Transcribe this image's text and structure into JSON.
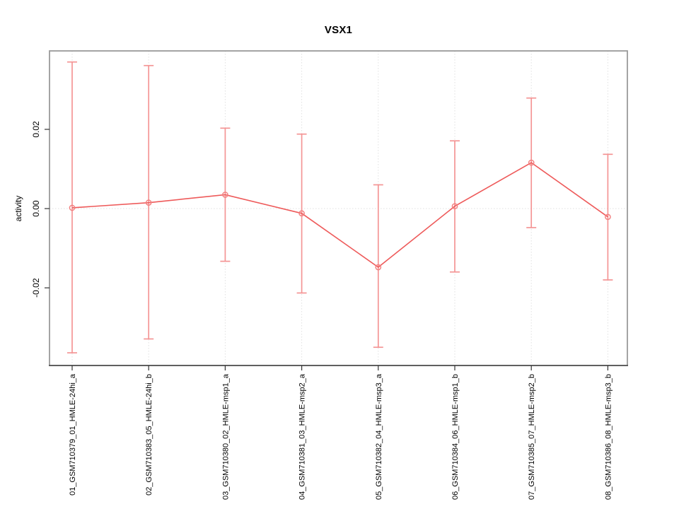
{
  "chart_data": {
    "type": "line",
    "title": "VSX1",
    "xlabel": "",
    "ylabel": "activity",
    "legend": "none",
    "grid": {
      "vertical_per_category": true,
      "horizontal_at": 0,
      "style": "dotted"
    },
    "ylim": [
      -0.0396,
      0.0398
    ],
    "yticks": {
      "values": [
        -0.02,
        0,
        0.02
      ],
      "labels": [
        "-0.02",
        "0.00",
        "0.02"
      ]
    },
    "categories": [
      "01_GSM710379_01_HMLE-24hi_a",
      "02_GSM710383_05_HMLE-24hi_b",
      "03_GSM710380_02_HMLE-msp1_a",
      "04_GSM710381_03_HMLE-msp2_a",
      "05_GSM710382_04_HMLE-msp3_a",
      "06_GSM710384_06_HMLE-msp1_b",
      "07_GSM710385_07_HMLE-msp2_b",
      "08_GSM710386_08_HMLE-msp3_b"
    ],
    "series": [
      {
        "name": "activity",
        "marker": "open-circle",
        "values": [
          0.0002,
          0.0015,
          0.0035,
          -0.0012,
          -0.0148,
          0.0006,
          0.0116,
          -0.0021
        ],
        "upper_error": [
          0.037,
          0.0361,
          0.0203,
          0.0188,
          0.006,
          0.0171,
          0.0279,
          0.0137
        ],
        "lower_error": [
          -0.0364,
          -0.0329,
          -0.0133,
          -0.0213,
          -0.035,
          -0.016,
          -0.0048,
          -0.018
        ]
      }
    ],
    "colors": {
      "line": "#ee5a5a",
      "marker": "#f28282",
      "error_bar": "#f49595",
      "grid": "#e0e0e0",
      "plot_border": "#9a9a9a",
      "axis": "#333333",
      "text": "#000000",
      "background": "#ffffff"
    }
  }
}
